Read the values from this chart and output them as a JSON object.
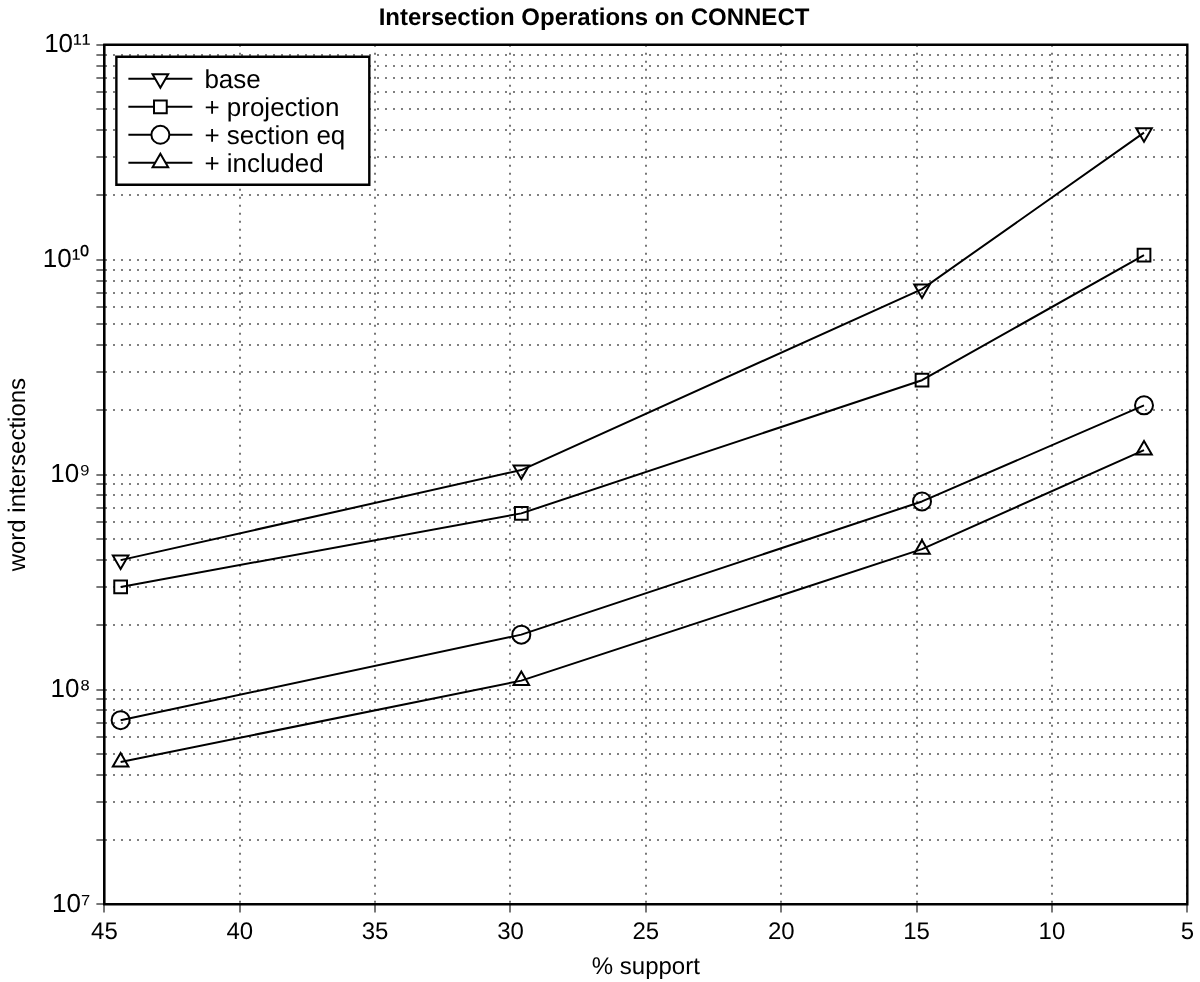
{
  "chart_data": {
    "type": "line",
    "title": "Intersection Operations on CONNECT",
    "xlabel": "% support",
    "ylabel": "word intersections",
    "x": [
      44.4,
      29.6,
      14.8,
      6.6
    ],
    "series": [
      {
        "name": "base",
        "color": "#000000",
        "marker": "triangle-down",
        "values": [
          400000000.0,
          1050000000.0,
          7300000000.0,
          39000000000.0
        ]
      },
      {
        "name": "+ projection",
        "color": "#000000",
        "marker": "square",
        "values": [
          300000000.0,
          660000000.0,
          2750000000.0,
          10500000000.0
        ]
      },
      {
        "name": "+ section eq",
        "color": "#000000",
        "marker": "circle",
        "values": [
          72000000.0,
          180000000.0,
          750000000.0,
          2100000000.0
        ]
      },
      {
        "name": "+ included",
        "color": "#000000",
        "marker": "triangle",
        "values": [
          46000000.0,
          110000000.0,
          450000000.0,
          1300000000.0
        ]
      }
    ],
    "xlim": [
      45,
      5
    ],
    "xticks": [
      45,
      40,
      35,
      30,
      25,
      20,
      15,
      10,
      5
    ],
    "ylim": [
      10000000.0,
      100000000000.0
    ],
    "yticks": [
      {
        "value": 10000000.0,
        "label": "10⁷"
      },
      {
        "value": 100000000.0,
        "label": "10⁸"
      },
      {
        "value": 1000000000.0,
        "label": "10⁹"
      },
      {
        "value": 10000000000.0,
        "label": "10¹⁰"
      },
      {
        "value": 100000000000.0,
        "label": "10¹¹"
      }
    ],
    "log": "y",
    "grid": true,
    "legend": "top left",
    "line_style": "solid"
  }
}
